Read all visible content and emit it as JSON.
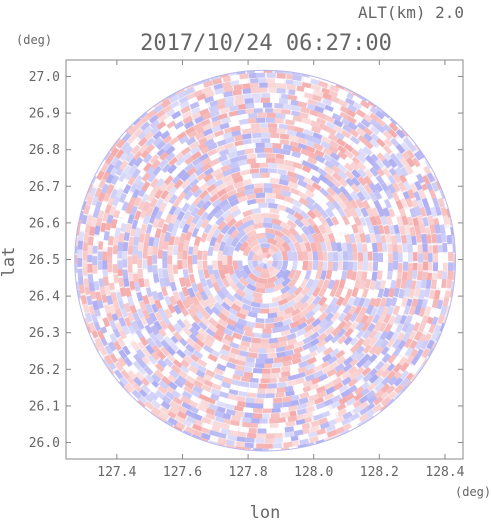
{
  "chart_data": {
    "type": "heatmap",
    "title": "2017/10/24 06:27:00",
    "subtitle": "ALT(km) 2.0",
    "xlabel": "lon",
    "ylabel": "lat",
    "xunit": "(deg)",
    "yunit": "(deg)",
    "xlim": [
      127.245,
      128.455
    ],
    "ylim": [
      25.955,
      27.045
    ],
    "xticks": [
      "127.4",
      "127.6",
      "127.8",
      "128.0",
      "128.2",
      "128.4"
    ],
    "yticks": [
      "26.0",
      "26.1",
      "26.2",
      "26.3",
      "26.4",
      "26.5",
      "26.6",
      "26.7",
      "26.8",
      "26.9",
      "27.0"
    ],
    "center": {
      "lon": 127.852,
      "lat": 26.497
    },
    "radius_deg_lat": 0.52,
    "grid": false,
    "colors": {
      "positive": "#f4a6a6",
      "negative": "#a9a9f2",
      "neutral": "#ffffff",
      "axis": "#888888"
    }
  }
}
